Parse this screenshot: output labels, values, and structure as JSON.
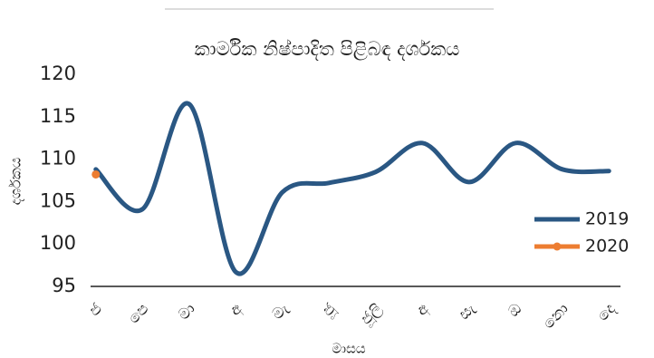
{
  "chart_data": {
    "type": "line",
    "title": "කාර්මික නිෂ්පාදිත පිළිබඳ දර්ශකය",
    "x_label": "මාසය",
    "y_label": "දර්ශකය",
    "categories": [
      "ජ",
      "පෙ",
      "මා",
      "අ",
      "මැ",
      "ජූ",
      "ජූලි",
      "අ",
      "සැ",
      "ඔ",
      "නො",
      "දෙ"
    ],
    "series": [
      {
        "name": "2019",
        "color": "#2a5783",
        "marker": false,
        "values": [
          108.8,
          104.1,
          116.5,
          96.7,
          106.1,
          107.2,
          108.5,
          111.9,
          107.3,
          111.9,
          108.8,
          108.6
        ]
      },
      {
        "name": "2020",
        "color": "#ed7d31",
        "marker": true,
        "values": [
          108.2,
          null,
          null,
          null,
          null,
          null,
          null,
          null,
          null,
          null,
          null,
          null
        ]
      }
    ],
    "ylim": [
      95,
      120
    ],
    "yticks": [
      95,
      100,
      105,
      110,
      115,
      120
    ],
    "smooth": true,
    "legend": "right"
  }
}
